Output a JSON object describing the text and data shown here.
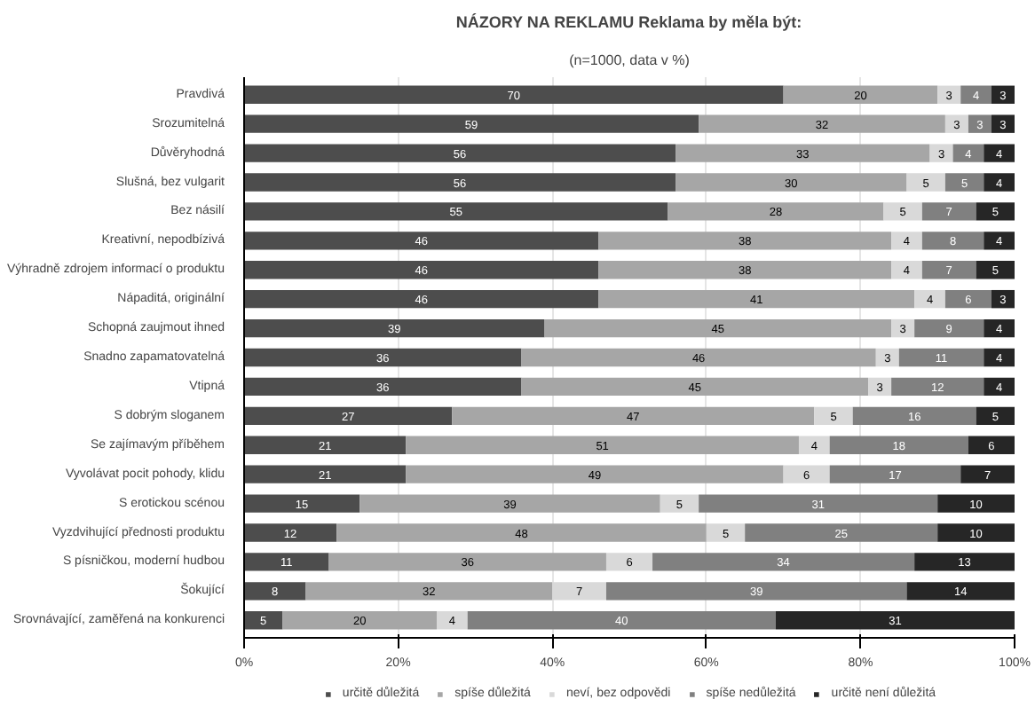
{
  "chart_data": {
    "type": "bar",
    "orientation": "horizontal",
    "stacked": true,
    "title": "NÁZORY NA REKLAMU Reklama by měla být:",
    "subtitle": "(n=1000, data v %)",
    "categories": [
      "Pravdivá",
      "Srozumitelná",
      "Důvěryhodná",
      "Slušná, bez vulgarit",
      "Bez násilí",
      "Kreativní, nepodbízivá",
      "Výhradně zdrojem informací o produktu",
      "Nápaditá, originální",
      "Schopná zaujmout ihned",
      "Snadno zapamatovatelná",
      "Vtipná",
      "S dobrým sloganem",
      "Se zajímavým příběhem",
      "Vyvolávat pocit pohody, klidu",
      "S erotickou scénou",
      "Vyzdvihující přednosti produktu",
      "S písničkou, moderní hudbou",
      "Šokující",
      "Srovnávající, zaměřená na konkurenci"
    ],
    "series": [
      {
        "name": "určitě důležitá",
        "color": "#4d4d4d",
        "values": [
          70,
          59,
          56,
          56,
          55,
          46,
          46,
          46,
          39,
          36,
          36,
          27,
          21,
          21,
          15,
          12,
          11,
          8,
          5
        ]
      },
      {
        "name": "spíše důležitá",
        "color": "#a6a6a6",
        "values": [
          20,
          32,
          33,
          30,
          28,
          38,
          38,
          41,
          45,
          46,
          45,
          47,
          51,
          49,
          39,
          48,
          36,
          32,
          20
        ]
      },
      {
        "name": "neví, bez odpovědi",
        "color": "#d9d9d9",
        "values": [
          3,
          3,
          3,
          5,
          5,
          4,
          4,
          4,
          3,
          3,
          3,
          5,
          4,
          6,
          5,
          5,
          6,
          7,
          4
        ]
      },
      {
        "name": "spíše nedůležitá",
        "color": "#808080",
        "values": [
          4,
          3,
          4,
          5,
          7,
          8,
          7,
          6,
          9,
          11,
          12,
          16,
          18,
          17,
          31,
          25,
          34,
          39,
          40
        ]
      },
      {
        "name": "určitě není důležitá",
        "color": "#262626",
        "values": [
          3,
          3,
          4,
          4,
          5,
          4,
          5,
          3,
          4,
          4,
          4,
          5,
          6,
          7,
          10,
          10,
          13,
          14,
          31
        ]
      }
    ],
    "xlim": [
      0,
      100
    ],
    "xticks": [
      {
        "value": 0,
        "label": "0%"
      },
      {
        "value": 20,
        "label": "20%"
      },
      {
        "value": 40,
        "label": "40%"
      },
      {
        "value": 60,
        "label": "60%"
      },
      {
        "value": 80,
        "label": "80%"
      },
      {
        "value": 100,
        "label": "100%"
      }
    ],
    "grid": "x",
    "legend": "bottom",
    "data_labels": true
  }
}
